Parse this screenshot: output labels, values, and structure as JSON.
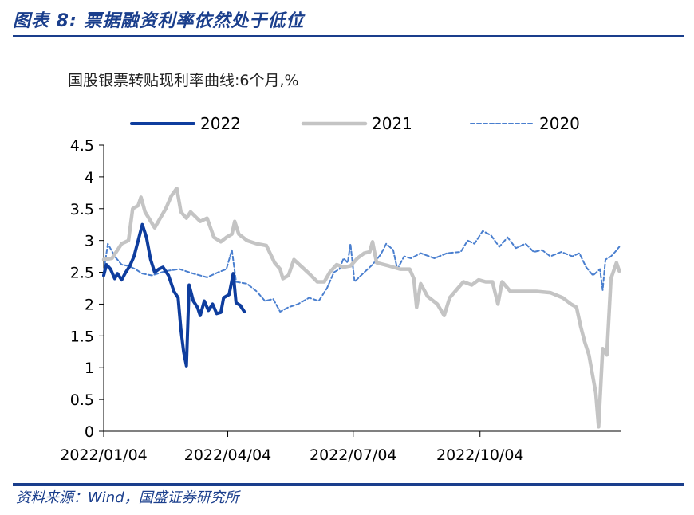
{
  "figure": {
    "title": "图表 8:  票据融资利率依然处于低位",
    "source": "资料来源：Wind，国盛证券研究所"
  },
  "chart_data": {
    "type": "line",
    "title": "国股银票转贴现利率曲线:6个月,%",
    "xlabel": "",
    "ylabel": "",
    "ylim": [
      0,
      4.5
    ],
    "yticks": [
      "0",
      "0.5",
      "1",
      "1.5",
      "2",
      "2.5",
      "3",
      "3.5",
      "4",
      "4.5"
    ],
    "xlim": [
      "2022-01-04",
      "2022-12-31"
    ],
    "xticks": [
      "2022/01/04",
      "2022/04/04",
      "2022/07/04",
      "2022/10/04"
    ],
    "grid": false,
    "legend": "top",
    "series": [
      {
        "name": "2022",
        "color": "#0e3d9e",
        "style": "solid-thick",
        "points": [
          [
            "2022-01-04",
            2.45
          ],
          [
            "2022-01-06",
            2.62
          ],
          [
            "2022-01-09",
            2.55
          ],
          [
            "2022-01-12",
            2.4
          ],
          [
            "2022-01-14",
            2.48
          ],
          [
            "2022-01-17",
            2.38
          ],
          [
            "2022-01-20",
            2.5
          ],
          [
            "2022-01-23",
            2.6
          ],
          [
            "2022-01-26",
            2.75
          ],
          [
            "2022-01-29",
            3.0
          ],
          [
            "2022-02-01",
            3.25
          ],
          [
            "2022-02-04",
            3.05
          ],
          [
            "2022-02-07",
            2.7
          ],
          [
            "2022-02-10",
            2.5
          ],
          [
            "2022-02-13",
            2.55
          ],
          [
            "2022-02-16",
            2.58
          ],
          [
            "2022-02-20",
            2.45
          ],
          [
            "2022-02-24",
            2.2
          ],
          [
            "2022-02-27",
            2.1
          ],
          [
            "2022-03-01",
            1.6
          ],
          [
            "2022-03-03",
            1.25
          ],
          [
            "2022-03-05",
            1.03
          ],
          [
            "2022-03-07",
            2.3
          ],
          [
            "2022-03-10",
            2.05
          ],
          [
            "2022-03-13",
            1.95
          ],
          [
            "2022-03-15",
            1.82
          ],
          [
            "2022-03-18",
            2.05
          ],
          [
            "2022-03-21",
            1.9
          ],
          [
            "2022-03-24",
            2.0
          ],
          [
            "2022-03-27",
            1.85
          ],
          [
            "2022-03-30",
            1.87
          ],
          [
            "2022-04-01",
            2.1
          ],
          [
            "2022-04-05",
            2.15
          ],
          [
            "2022-04-08",
            2.48
          ],
          [
            "2022-04-10",
            2.02
          ],
          [
            "2022-04-13",
            1.98
          ],
          [
            "2022-04-16",
            1.88
          ]
        ]
      },
      {
        "name": "2021",
        "color": "#c4c4c4",
        "style": "solid-thick",
        "points": [
          [
            "2022-01-04",
            2.7
          ],
          [
            "2022-01-10",
            2.72
          ],
          [
            "2022-01-17",
            2.95
          ],
          [
            "2022-01-22",
            3.0
          ],
          [
            "2022-01-25",
            3.5
          ],
          [
            "2022-01-29",
            3.55
          ],
          [
            "2022-01-31",
            3.68
          ],
          [
            "2022-02-03",
            3.45
          ],
          [
            "2022-02-10",
            3.2
          ],
          [
            "2022-02-14",
            3.35
          ],
          [
            "2022-02-18",
            3.5
          ],
          [
            "2022-02-22",
            3.7
          ],
          [
            "2022-02-26",
            3.82
          ],
          [
            "2022-03-01",
            3.45
          ],
          [
            "2022-03-05",
            3.35
          ],
          [
            "2022-03-08",
            3.45
          ],
          [
            "2022-03-15",
            3.3
          ],
          [
            "2022-03-20",
            3.35
          ],
          [
            "2022-03-25",
            3.05
          ],
          [
            "2022-03-30",
            2.98
          ],
          [
            "2022-04-03",
            3.05
          ],
          [
            "2022-04-07",
            3.1
          ],
          [
            "2022-04-09",
            3.3
          ],
          [
            "2022-04-12",
            3.1
          ],
          [
            "2022-04-18",
            3.0
          ],
          [
            "2022-04-25",
            2.95
          ],
          [
            "2022-05-02",
            2.92
          ],
          [
            "2022-05-08",
            2.65
          ],
          [
            "2022-05-12",
            2.55
          ],
          [
            "2022-05-14",
            2.4
          ],
          [
            "2022-05-18",
            2.45
          ],
          [
            "2022-05-22",
            2.7
          ],
          [
            "2022-05-27",
            2.6
          ],
          [
            "2022-06-02",
            2.48
          ],
          [
            "2022-06-08",
            2.35
          ],
          [
            "2022-06-13",
            2.35
          ],
          [
            "2022-06-17",
            2.5
          ],
          [
            "2022-06-22",
            2.62
          ],
          [
            "2022-06-27",
            2.58
          ],
          [
            "2022-07-02",
            2.6
          ],
          [
            "2022-07-07",
            2.72
          ],
          [
            "2022-07-12",
            2.8
          ],
          [
            "2022-07-16",
            2.82
          ],
          [
            "2022-07-18",
            2.98
          ],
          [
            "2022-07-21",
            2.65
          ],
          [
            "2022-07-30",
            2.6
          ],
          [
            "2022-08-07",
            2.55
          ],
          [
            "2022-08-14",
            2.55
          ],
          [
            "2022-08-17",
            2.4
          ],
          [
            "2022-08-19",
            1.95
          ],
          [
            "2022-08-22",
            2.32
          ],
          [
            "2022-08-27",
            2.12
          ],
          [
            "2022-09-03",
            2.0
          ],
          [
            "2022-09-08",
            1.82
          ],
          [
            "2022-09-12",
            2.1
          ],
          [
            "2022-09-16",
            2.2
          ],
          [
            "2022-09-22",
            2.35
          ],
          [
            "2022-09-28",
            2.3
          ],
          [
            "2022-10-03",
            2.38
          ],
          [
            "2022-10-08",
            2.35
          ],
          [
            "2022-10-13",
            2.35
          ],
          [
            "2022-10-17",
            2.0
          ],
          [
            "2022-10-20",
            2.35
          ],
          [
            "2022-10-26",
            2.2
          ],
          [
            "2022-11-04",
            2.2
          ],
          [
            "2022-11-14",
            2.2
          ],
          [
            "2022-11-24",
            2.18
          ],
          [
            "2022-12-03",
            2.1
          ],
          [
            "2022-12-09",
            2.0
          ],
          [
            "2022-12-13",
            1.95
          ],
          [
            "2022-12-16",
            1.65
          ],
          [
            "2022-12-19",
            1.4
          ],
          [
            "2022-12-22",
            1.2
          ],
          [
            "2022-12-27",
            0.6
          ],
          [
            "2022-12-29",
            0.07
          ],
          [
            "2023-01-01",
            1.3
          ],
          [
            "2023-01-04",
            1.2
          ],
          [
            "2023-01-07",
            2.4
          ],
          [
            "2023-01-11",
            2.65
          ],
          [
            "2023-01-13",
            2.52
          ]
        ]
      },
      {
        "name": "2020",
        "color": "#4a7fcf",
        "style": "dashed",
        "points": [
          [
            "2022-01-04",
            2.5
          ],
          [
            "2022-01-07",
            2.95
          ],
          [
            "2022-01-12",
            2.75
          ],
          [
            "2022-01-17",
            2.62
          ],
          [
            "2022-01-22",
            2.6
          ],
          [
            "2022-01-27",
            2.55
          ],
          [
            "2022-02-01",
            2.48
          ],
          [
            "2022-02-08",
            2.45
          ],
          [
            "2022-02-18",
            2.52
          ],
          [
            "2022-02-28",
            2.55
          ],
          [
            "2022-03-10",
            2.48
          ],
          [
            "2022-03-20",
            2.42
          ],
          [
            "2022-03-28",
            2.5
          ],
          [
            "2022-04-03",
            2.55
          ],
          [
            "2022-04-07",
            2.85
          ],
          [
            "2022-04-10",
            2.35
          ],
          [
            "2022-04-18",
            2.32
          ],
          [
            "2022-04-25",
            2.2
          ],
          [
            "2022-05-01",
            2.05
          ],
          [
            "2022-05-07",
            2.08
          ],
          [
            "2022-05-12",
            1.88
          ],
          [
            "2022-05-18",
            1.95
          ],
          [
            "2022-05-25",
            2.0
          ],
          [
            "2022-06-02",
            2.1
          ],
          [
            "2022-06-09",
            2.05
          ],
          [
            "2022-06-15",
            2.25
          ],
          [
            "2022-06-20",
            2.5
          ],
          [
            "2022-06-24",
            2.55
          ],
          [
            "2022-06-27",
            2.72
          ],
          [
            "2022-06-30",
            2.65
          ],
          [
            "2022-07-02",
            2.95
          ],
          [
            "2022-07-05",
            2.35
          ],
          [
            "2022-07-12",
            2.5
          ],
          [
            "2022-07-18",
            2.62
          ],
          [
            "2022-07-24",
            2.78
          ],
          [
            "2022-07-28",
            2.95
          ],
          [
            "2022-08-02",
            2.85
          ],
          [
            "2022-08-05",
            2.55
          ],
          [
            "2022-08-10",
            2.75
          ],
          [
            "2022-08-15",
            2.72
          ],
          [
            "2022-08-22",
            2.8
          ],
          [
            "2022-09-01",
            2.72
          ],
          [
            "2022-09-10",
            2.8
          ],
          [
            "2022-09-20",
            2.82
          ],
          [
            "2022-09-25",
            3.0
          ],
          [
            "2022-09-30",
            2.95
          ],
          [
            "2022-10-06",
            3.15
          ],
          [
            "2022-10-12",
            3.08
          ],
          [
            "2022-10-18",
            2.9
          ],
          [
            "2022-10-24",
            3.05
          ],
          [
            "2022-10-30",
            2.88
          ],
          [
            "2022-11-06",
            2.95
          ],
          [
            "2022-11-12",
            2.82
          ],
          [
            "2022-11-18",
            2.85
          ],
          [
            "2022-11-24",
            2.75
          ],
          [
            "2022-12-02",
            2.82
          ],
          [
            "2022-12-10",
            2.75
          ],
          [
            "2022-12-15",
            2.8
          ],
          [
            "2022-12-20",
            2.58
          ],
          [
            "2022-12-25",
            2.45
          ],
          [
            "2022-12-30",
            2.55
          ],
          [
            "2023-01-01",
            2.22
          ],
          [
            "2023-01-03",
            2.7
          ],
          [
            "2023-01-07",
            2.75
          ],
          [
            "2023-01-10",
            2.82
          ],
          [
            "2023-01-13",
            2.9
          ]
        ]
      }
    ]
  }
}
